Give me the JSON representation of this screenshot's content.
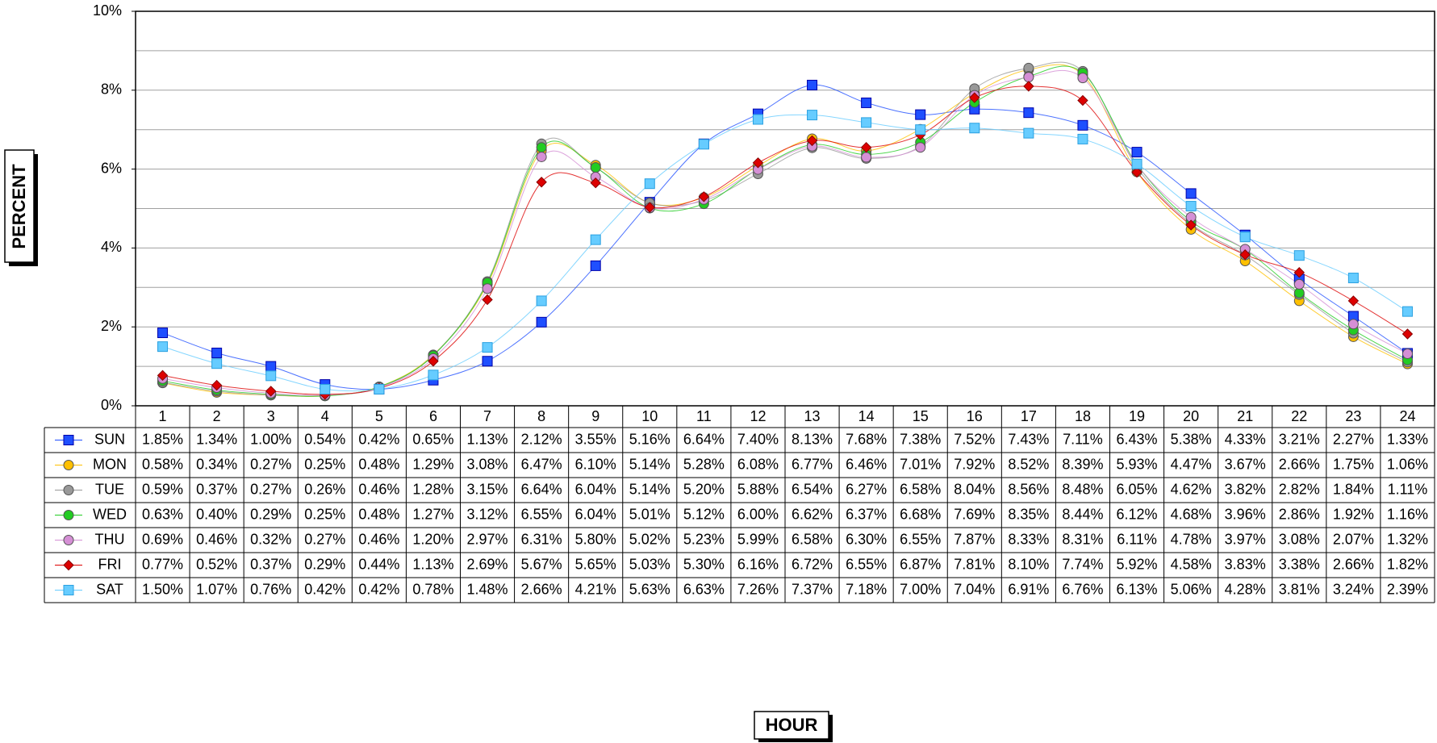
{
  "chart_data": {
    "type": "line",
    "y_axis_title": "PERCENT",
    "x_axis_title": "HOUR",
    "categories": [
      "1",
      "2",
      "3",
      "4",
      "5",
      "6",
      "7",
      "8",
      "9",
      "10",
      "11",
      "12",
      "13",
      "14",
      "15",
      "16",
      "17",
      "18",
      "19",
      "20",
      "21",
      "22",
      "23",
      "24"
    ],
    "ylim": [
      0,
      10
    ],
    "yticks": [
      {
        "value": 0,
        "label": "0%"
      },
      {
        "value": 2,
        "label": "2%"
      },
      {
        "value": 4,
        "label": "4%"
      },
      {
        "value": 6,
        "label": "6%"
      },
      {
        "value": 8,
        "label": "8%"
      },
      {
        "value": 10,
        "label": "10%"
      }
    ],
    "minor_yticks": [
      1,
      3,
      5,
      7,
      9
    ],
    "grid": true,
    "smooth": true,
    "data_table": true,
    "series": [
      {
        "name": "SUN",
        "color": "#1f4fff",
        "marker": "square",
        "values": [
          1.85,
          1.34,
          1.0,
          0.54,
          0.42,
          0.65,
          1.13,
          2.12,
          3.55,
          5.16,
          6.64,
          7.4,
          8.13,
          7.68,
          7.38,
          7.52,
          7.43,
          7.11,
          6.43,
          5.38,
          4.33,
          3.21,
          2.27,
          1.33
        ],
        "value_labels": [
          "1.85%",
          "1.34%",
          "1.00%",
          "0.54%",
          "0.42%",
          "0.65%",
          "1.13%",
          "2.12%",
          "3.55%",
          "5.16%",
          "6.64%",
          "7.40%",
          "8.13%",
          "7.68%",
          "7.38%",
          "7.52%",
          "7.43%",
          "7.11%",
          "6.43%",
          "5.38%",
          "4.33%",
          "3.21%",
          "2.27%",
          "1.33%"
        ]
      },
      {
        "name": "MON",
        "color": "#ffc000",
        "marker": "circle",
        "values": [
          0.58,
          0.34,
          0.27,
          0.25,
          0.48,
          1.29,
          3.08,
          6.47,
          6.1,
          5.14,
          5.28,
          6.08,
          6.77,
          6.46,
          7.01,
          7.92,
          8.52,
          8.39,
          5.93,
          4.47,
          3.67,
          2.66,
          1.75,
          1.06
        ],
        "value_labels": [
          "0.58%",
          "0.34%",
          "0.27%",
          "0.25%",
          "0.48%",
          "1.29%",
          "3.08%",
          "6.47%",
          "6.10%",
          "5.14%",
          "5.28%",
          "6.08%",
          "6.77%",
          "6.46%",
          "7.01%",
          "7.92%",
          "8.52%",
          "8.39%",
          "5.93%",
          "4.47%",
          "3.67%",
          "2.66%",
          "1.75%",
          "1.06%"
        ]
      },
      {
        "name": "TUE",
        "color": "#999999",
        "marker": "circle",
        "values": [
          0.59,
          0.37,
          0.27,
          0.26,
          0.46,
          1.28,
          3.15,
          6.64,
          6.04,
          5.14,
          5.2,
          5.88,
          6.54,
          6.27,
          6.58,
          8.04,
          8.56,
          8.48,
          6.05,
          4.62,
          3.82,
          2.82,
          1.84,
          1.11
        ],
        "value_labels": [
          "0.59%",
          "0.37%",
          "0.27%",
          "0.26%",
          "0.46%",
          "1.28%",
          "3.15%",
          "6.64%",
          "6.04%",
          "5.14%",
          "5.20%",
          "5.88%",
          "6.54%",
          "6.27%",
          "6.58%",
          "8.04%",
          "8.56%",
          "8.48%",
          "6.05%",
          "4.62%",
          "3.82%",
          "2.82%",
          "1.84%",
          "1.11%"
        ]
      },
      {
        "name": "WED",
        "color": "#22cc22",
        "marker": "circle",
        "values": [
          0.63,
          0.4,
          0.29,
          0.25,
          0.48,
          1.27,
          3.12,
          6.55,
          6.04,
          5.01,
          5.12,
          6.0,
          6.62,
          6.37,
          6.68,
          7.69,
          8.35,
          8.44,
          6.12,
          4.68,
          3.96,
          2.86,
          1.92,
          1.16
        ],
        "value_labels": [
          "0.63%",
          "0.40%",
          "0.29%",
          "0.25%",
          "0.48%",
          "1.27%",
          "3.12%",
          "6.55%",
          "6.04%",
          "5.01%",
          "5.12%",
          "6.00%",
          "6.62%",
          "6.37%",
          "6.68%",
          "7.69%",
          "8.35%",
          "8.44%",
          "6.12%",
          "4.68%",
          "3.96%",
          "2.86%",
          "1.92%",
          "1.16%"
        ]
      },
      {
        "name": "THU",
        "color": "#d58fd5",
        "marker": "circle",
        "values": [
          0.69,
          0.46,
          0.32,
          0.27,
          0.46,
          1.2,
          2.97,
          6.31,
          5.8,
          5.02,
          5.23,
          5.99,
          6.58,
          6.3,
          6.55,
          7.87,
          8.33,
          8.31,
          6.11,
          4.78,
          3.97,
          3.08,
          2.07,
          1.32
        ],
        "value_labels": [
          "0.69%",
          "0.46%",
          "0.32%",
          "0.27%",
          "0.46%",
          "1.20%",
          "2.97%",
          "6.31%",
          "5.80%",
          "5.02%",
          "5.23%",
          "5.99%",
          "6.58%",
          "6.30%",
          "6.55%",
          "7.87%",
          "8.33%",
          "8.31%",
          "6.11%",
          "4.78%",
          "3.97%",
          "3.08%",
          "2.07%",
          "1.32%"
        ]
      },
      {
        "name": "FRI",
        "color": "#dd0000",
        "marker": "diamond",
        "values": [
          0.77,
          0.52,
          0.37,
          0.29,
          0.44,
          1.13,
          2.69,
          5.67,
          5.65,
          5.03,
          5.3,
          6.16,
          6.72,
          6.55,
          6.87,
          7.81,
          8.1,
          7.74,
          5.92,
          4.58,
          3.83,
          3.38,
          2.66,
          1.82
        ],
        "value_labels": [
          "0.77%",
          "0.52%",
          "0.37%",
          "0.29%",
          "0.44%",
          "1.13%",
          "2.69%",
          "5.67%",
          "5.65%",
          "5.03%",
          "5.30%",
          "6.16%",
          "6.72%",
          "6.55%",
          "6.87%",
          "7.81%",
          "8.10%",
          "7.74%",
          "5.92%",
          "4.58%",
          "3.83%",
          "3.38%",
          "2.66%",
          "1.82%"
        ]
      },
      {
        "name": "SAT",
        "color": "#66ccff",
        "marker": "square",
        "values": [
          1.5,
          1.07,
          0.76,
          0.42,
          0.42,
          0.78,
          1.48,
          2.66,
          4.21,
          5.63,
          6.63,
          7.26,
          7.37,
          7.18,
          7.0,
          7.04,
          6.91,
          6.76,
          6.13,
          5.06,
          4.28,
          3.81,
          3.24,
          2.39
        ],
        "value_labels": [
          "1.50%",
          "1.07%",
          "0.76%",
          "0.42%",
          "0.42%",
          "0.78%",
          "1.48%",
          "2.66%",
          "4.21%",
          "5.63%",
          "6.63%",
          "7.26%",
          "7.37%",
          "7.18%",
          "7.00%",
          "7.04%",
          "6.91%",
          "6.76%",
          "6.13%",
          "5.06%",
          "4.28%",
          "3.81%",
          "3.24%",
          "2.39%"
        ]
      }
    ]
  }
}
